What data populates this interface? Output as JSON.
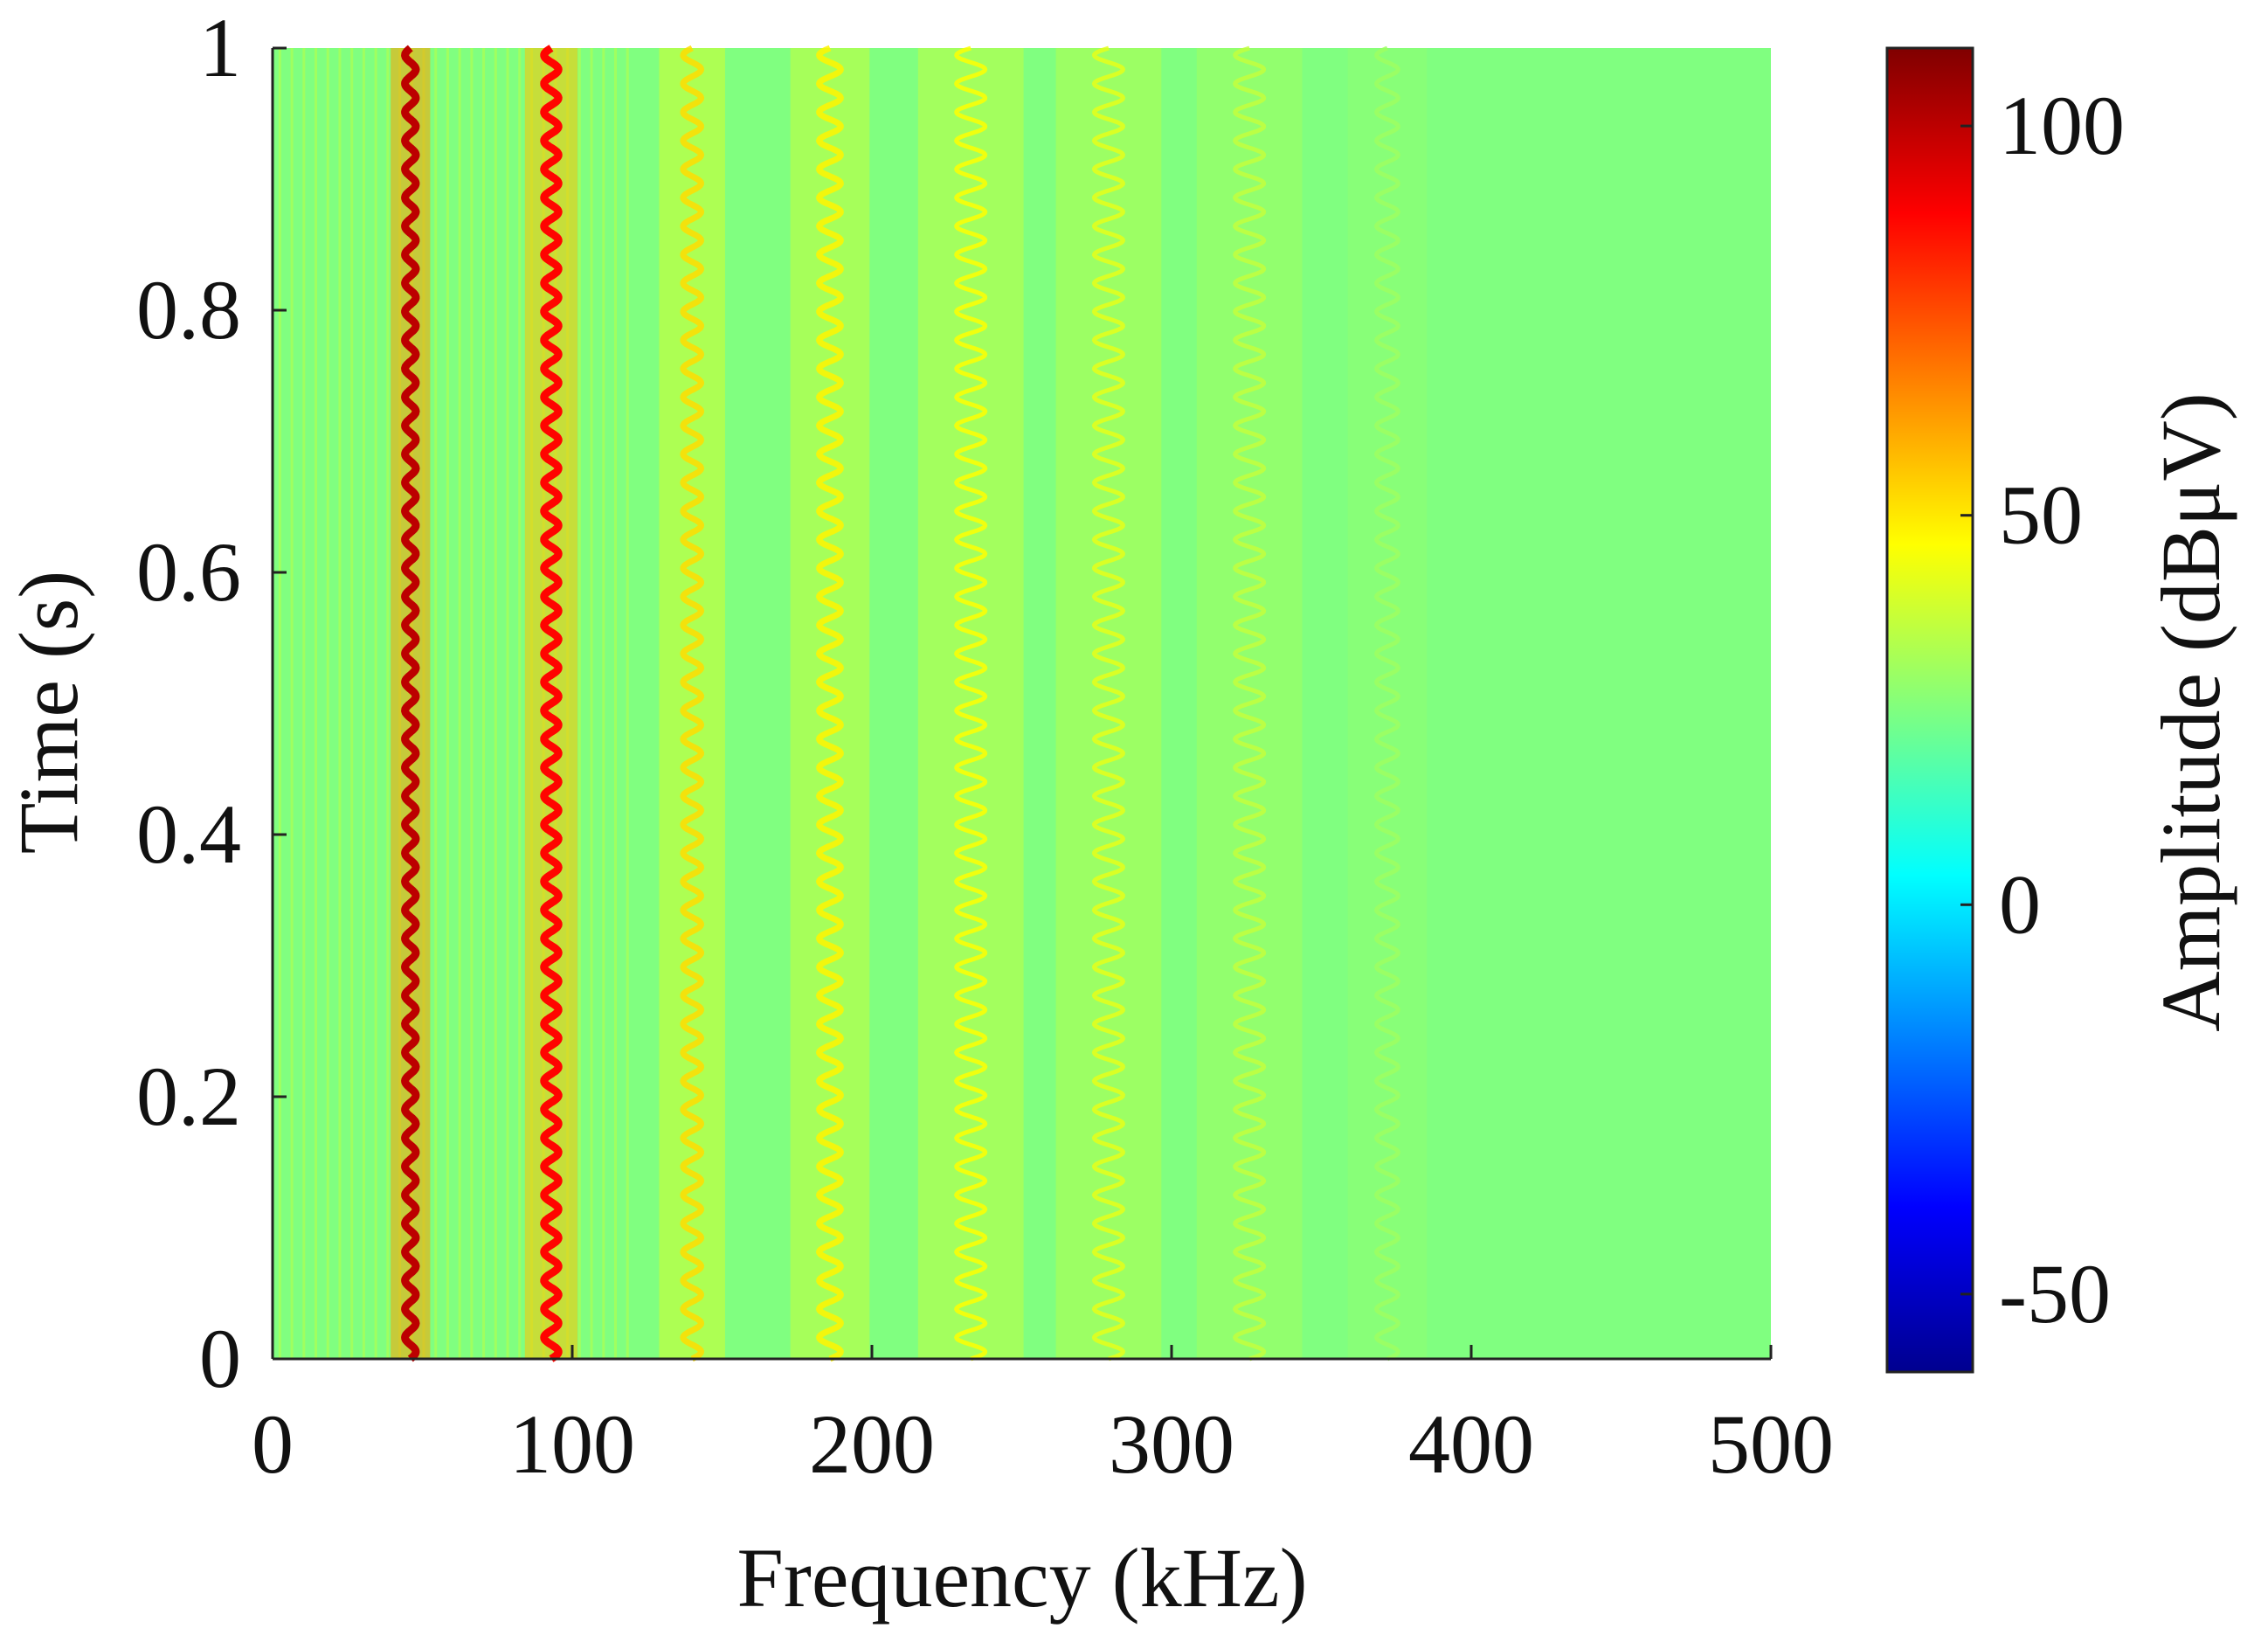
{
  "chart_data": {
    "type": "heatmap",
    "title": "",
    "xlabel": "Frequency (kHz)",
    "ylabel": "Time (s)",
    "xlim": [
      0,
      500
    ],
    "ylim": [
      0,
      1
    ],
    "x_ticks": [
      0,
      100,
      200,
      300,
      400,
      500
    ],
    "x_tick_labels": [
      "0",
      "100",
      "200",
      "300",
      "400",
      "500"
    ],
    "y_ticks": [
      0,
      0.2,
      0.4,
      0.6,
      0.8,
      1
    ],
    "y_tick_labels": [
      "0",
      "0.2",
      "0.4",
      "0.6",
      "0.8",
      "1"
    ],
    "colorbar": {
      "label": "Amplitude (dBμV)",
      "clim": [
        -60,
        110
      ],
      "ticks": [
        -50,
        0,
        50,
        100
      ],
      "tick_labels": [
        "-50",
        "0",
        "50",
        "100"
      ],
      "colormap": "jet"
    },
    "background_level_dBuV": 25,
    "harmonic_bands": [
      {
        "center_khz": 46,
        "amplitude_dBuV": 100,
        "ripple_khz": 3
      },
      {
        "center_khz": 93,
        "amplitude_dBuV": 88,
        "ripple_khz": 4
      },
      {
        "center_khz": 140,
        "amplitude_dBuV": 52,
        "ripple_khz": 5
      },
      {
        "center_khz": 186,
        "amplitude_dBuV": 48,
        "ripple_khz": 6
      },
      {
        "center_khz": 233,
        "amplitude_dBuV": 46,
        "ripple_khz": 8
      },
      {
        "center_khz": 279,
        "amplitude_dBuV": 42,
        "ripple_khz": 8
      },
      {
        "center_khz": 326,
        "amplitude_dBuV": 36,
        "ripple_khz": 8
      },
      {
        "center_khz": 372,
        "amplitude_dBuV": 30,
        "ripple_khz": 6
      }
    ],
    "ripple_cycles_per_second": 46
  }
}
